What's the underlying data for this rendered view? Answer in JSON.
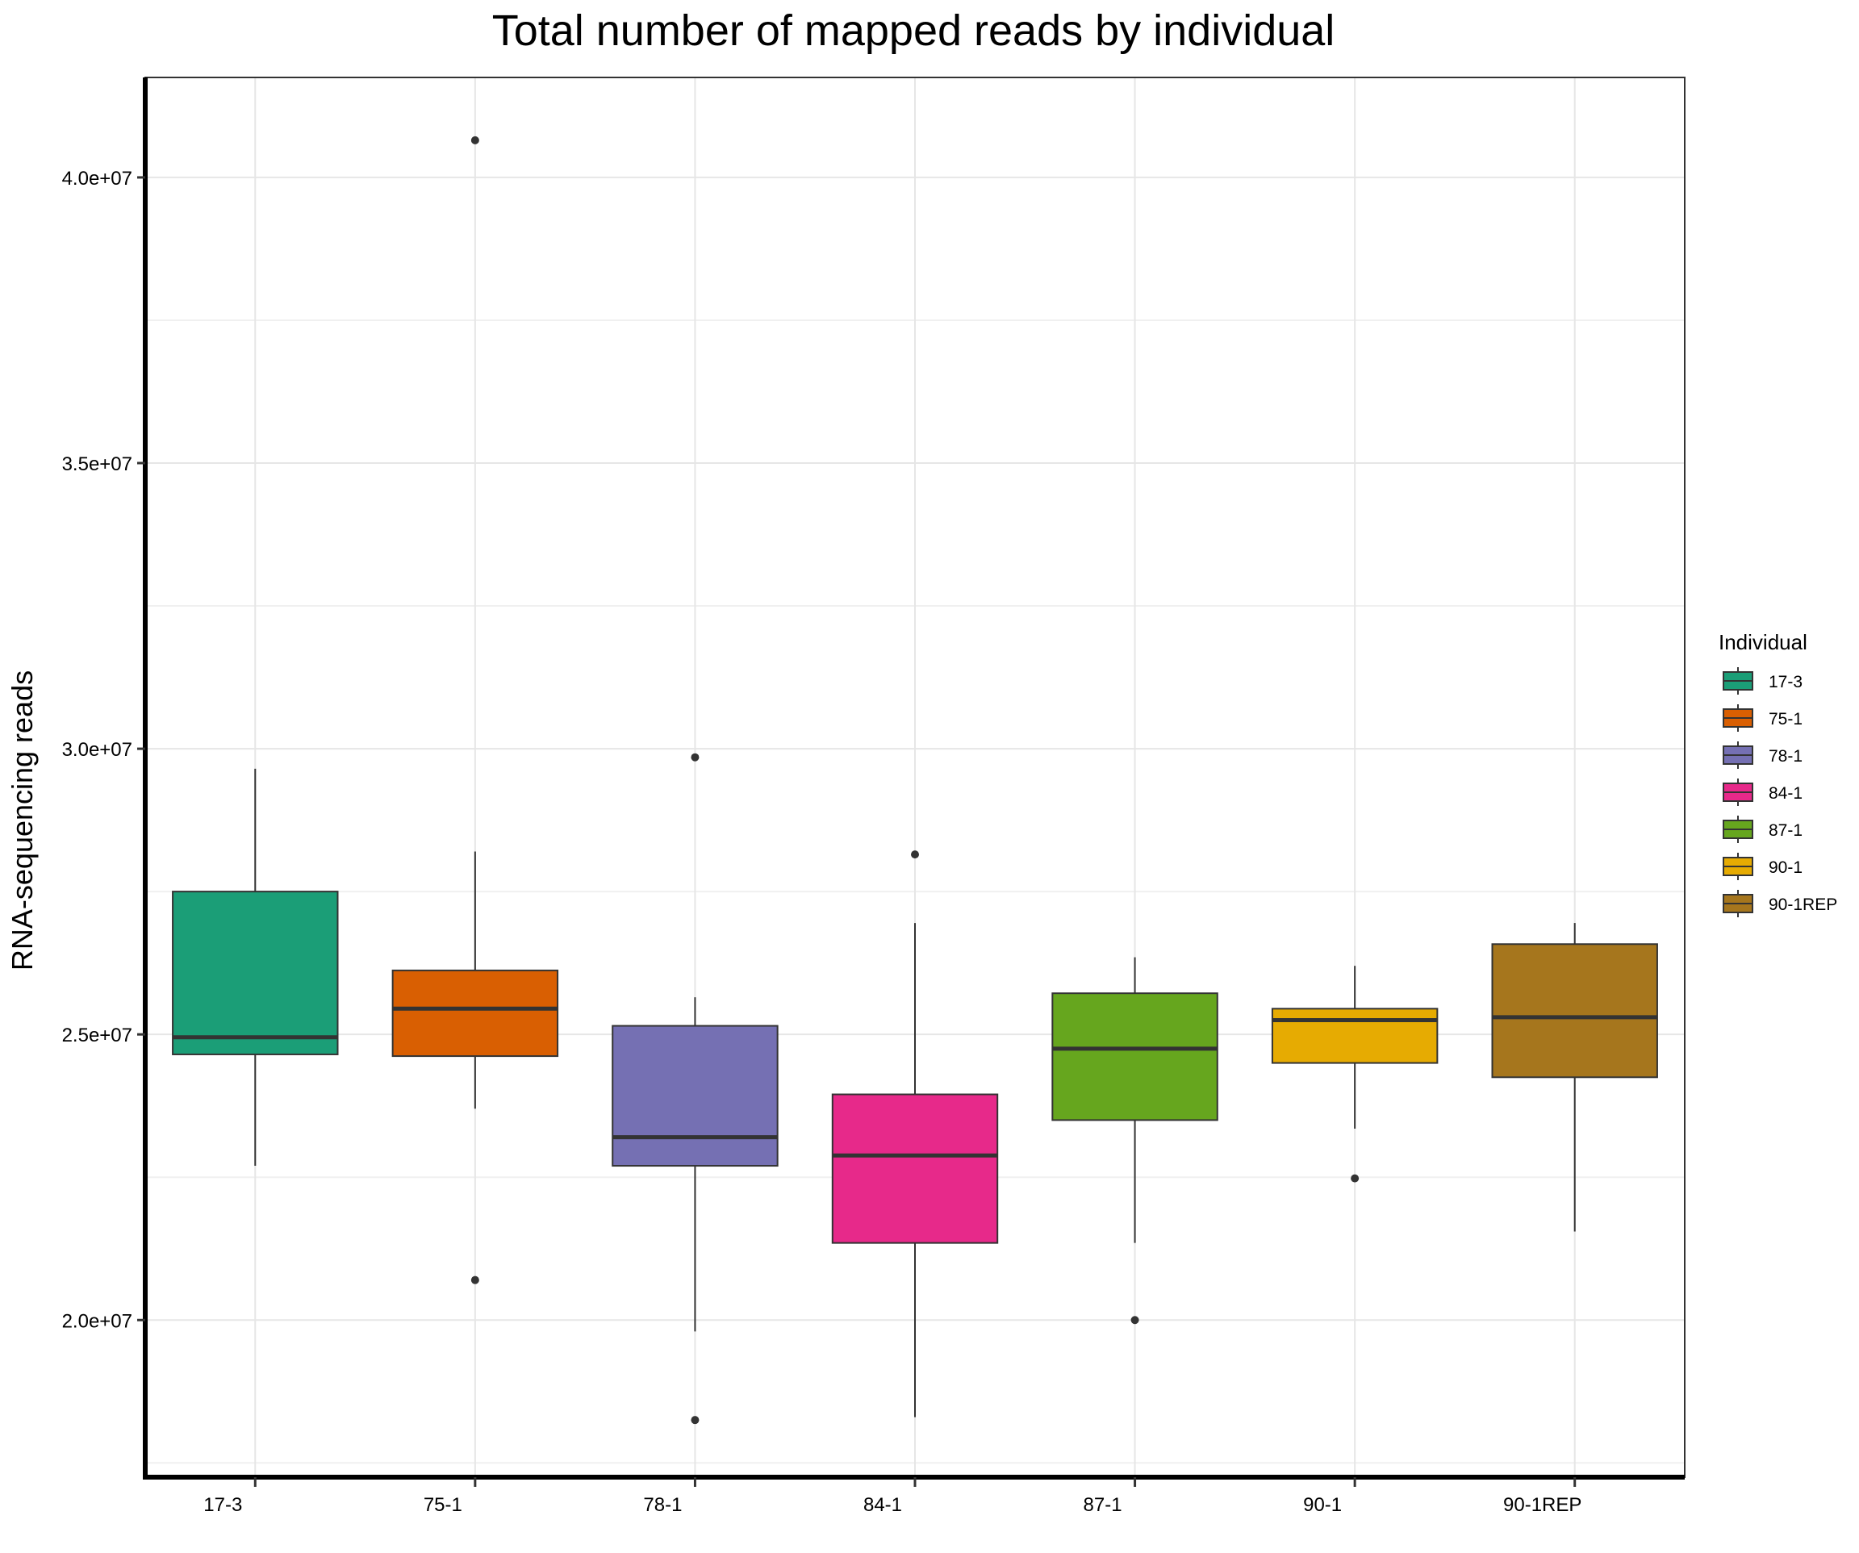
{
  "chart_data": {
    "type": "boxplot",
    "title": "Total number of mapped reads by individual",
    "xlabel": "",
    "ylabel": "RNA-sequencing reads",
    "ylim": [
      17250000,
      41750000
    ],
    "yticks": [
      20000000,
      25000000,
      30000000,
      35000000,
      40000000
    ],
    "ytick_labels": [
      "2.0e+07",
      "2.5e+07",
      "3.0e+07",
      "3.5e+07",
      "4.0e+07"
    ],
    "grid": true,
    "legend": {
      "title": "Individual",
      "position": "right"
    },
    "categories": [
      "17-3",
      "75-1",
      "78-1",
      "84-1",
      "87-1",
      "90-1",
      "90-1REP"
    ],
    "series": [
      {
        "name": "17-3",
        "color": "#1B9E77",
        "whisker_low": 22700000,
        "q1": 24650000,
        "median": 24950000,
        "q3": 27500000,
        "whisker_high": 29650000,
        "outliers": []
      },
      {
        "name": "75-1",
        "color": "#D95F02",
        "whisker_low": 23700000,
        "q1": 24620000,
        "median": 25450000,
        "q3": 26120000,
        "whisker_high": 28200000,
        "outliers": [
          20700000,
          40650000
        ]
      },
      {
        "name": "78-1",
        "color": "#7570B3",
        "whisker_low": 19800000,
        "q1": 22700000,
        "median": 23200000,
        "q3": 25150000,
        "whisker_high": 25650000,
        "outliers": [
          18250000,
          29850000
        ]
      },
      {
        "name": "84-1",
        "color": "#E7298A",
        "whisker_low": 18300000,
        "q1": 21350000,
        "median": 22880000,
        "q3": 23950000,
        "whisker_high": 26950000,
        "outliers": [
          28150000
        ]
      },
      {
        "name": "87-1",
        "color": "#66A61E",
        "whisker_low": 21350000,
        "q1": 23500000,
        "median": 24750000,
        "q3": 25720000,
        "whisker_high": 26350000,
        "outliers": [
          20000000
        ]
      },
      {
        "name": "90-1",
        "color": "#E6AB02",
        "whisker_low": 23350000,
        "q1": 24500000,
        "median": 25250000,
        "q3": 25450000,
        "whisker_high": 26200000,
        "outliers": [
          22480000
        ]
      },
      {
        "name": "90-1REP",
        "color": "#A6761D",
        "whisker_low": 21550000,
        "q1": 24250000,
        "median": 25300000,
        "q3": 26580000,
        "whisker_high": 26950000,
        "outliers": []
      }
    ]
  }
}
